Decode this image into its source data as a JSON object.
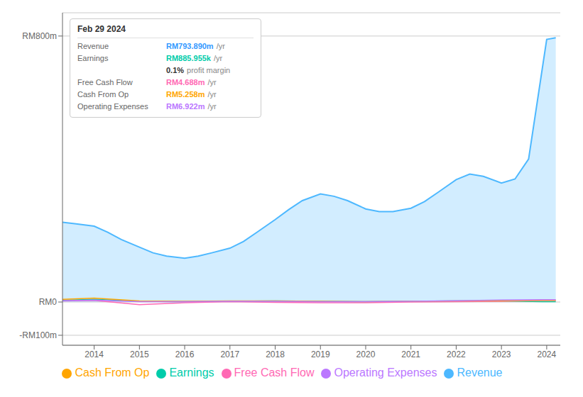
{
  "chart_data": {
    "type": "line",
    "series": [
      {
        "name": "Revenue",
        "type": "area",
        "color": "#4db8ff",
        "x": [
          2013.3,
          2013.6,
          2014.0,
          2014.3,
          2014.6,
          2015.0,
          2015.3,
          2015.6,
          2016.0,
          2016.3,
          2016.6,
          2017.0,
          2017.3,
          2017.6,
          2018.0,
          2018.3,
          2018.6,
          2019.0,
          2019.3,
          2019.6,
          2020.0,
          2020.3,
          2020.6,
          2021.0,
          2021.3,
          2021.6,
          2022.0,
          2022.3,
          2022.6,
          2023.0,
          2023.3,
          2023.6,
          2024.0,
          2024.2
        ],
        "values": [
          240,
          235,
          228,
          210,
          188,
          165,
          148,
          138,
          132,
          138,
          148,
          162,
          182,
          210,
          248,
          278,
          305,
          325,
          318,
          305,
          280,
          272,
          272,
          282,
          302,
          330,
          368,
          385,
          378,
          358,
          370,
          430,
          790,
          795
        ]
      },
      {
        "name": "Earnings",
        "color": "#00ccaa",
        "x": [
          2013.3,
          2014.0,
          2015.0,
          2016.0,
          2017.0,
          2018.0,
          2019.0,
          2020.0,
          2021.0,
          2022.0,
          2023.0,
          2024.0,
          2024.2
        ],
        "values": [
          5,
          8,
          2,
          1,
          2,
          3,
          2,
          1,
          2,
          3,
          3,
          1,
          1
        ]
      },
      {
        "name": "Free Cash Flow",
        "color": "#ff69b4",
        "x": [
          2013.3,
          2014.0,
          2015.0,
          2016.0,
          2017.0,
          2018.0,
          2019.0,
          2020.0,
          2021.0,
          2022.0,
          2023.0,
          2024.0,
          2024.2
        ],
        "values": [
          3,
          5,
          -8,
          -2,
          1,
          -1,
          -2,
          -2,
          0,
          1,
          2,
          5,
          5
        ]
      },
      {
        "name": "Cash From Op",
        "color": "#ffa500",
        "x": [
          2013.3,
          2014.0,
          2015.0,
          2016.0,
          2017.0,
          2018.0,
          2019.0,
          2020.0,
          2021.0,
          2022.0,
          2023.0,
          2024.0,
          2024.2
        ],
        "values": [
          8,
          12,
          3,
          2,
          3,
          3,
          2,
          1,
          2,
          3,
          4,
          5,
          5
        ]
      },
      {
        "name": "Operating Expenses",
        "color": "#bb77ff",
        "x": [
          2013.3,
          2014.0,
          2015.0,
          2016.0,
          2017.0,
          2018.0,
          2019.0,
          2020.0,
          2021.0,
          2022.0,
          2023.0,
          2024.0,
          2024.2
        ],
        "values": [
          4,
          6,
          1,
          1,
          2,
          2,
          1,
          1,
          2,
          4,
          6,
          7,
          7
        ]
      }
    ],
    "xlim": [
      2013.3,
      2024.3
    ],
    "xticks": [
      2014,
      2015,
      2016,
      2017,
      2018,
      2019,
      2020,
      2021,
      2022,
      2023,
      2024
    ],
    "ylim": [
      -130,
      870
    ],
    "yticks": [
      {
        "value": -100,
        "label": "-RM100m"
      },
      {
        "value": 0,
        "label": "RM0"
      },
      {
        "value": 800,
        "label": "RM800m"
      }
    ],
    "grid": true,
    "legend": "bottom",
    "annotations": {
      "title": "Feb 29 2024",
      "rows": [
        {
          "label": "Revenue",
          "value": "RM793.890m",
          "unit": "/yr",
          "color": "#3399ff"
        },
        {
          "label": "Earnings",
          "value": "RM885.955k",
          "unit": "/yr",
          "color": "#00ccaa"
        },
        {
          "value": "0.1%",
          "unit": "profit margin",
          "color": "#ffffff"
        },
        {
          "label": "Free Cash Flow",
          "value": "RM4.688m",
          "unit": "/yr",
          "color": "#ff69b4"
        },
        {
          "label": "Cash From Op",
          "value": "RM5.258m",
          "unit": "/yr",
          "color": "#ffa500"
        },
        {
          "label": "Operating Expenses",
          "value": "RM6.922m",
          "unit": "/yr",
          "color": "#bb77ff"
        }
      ]
    }
  }
}
